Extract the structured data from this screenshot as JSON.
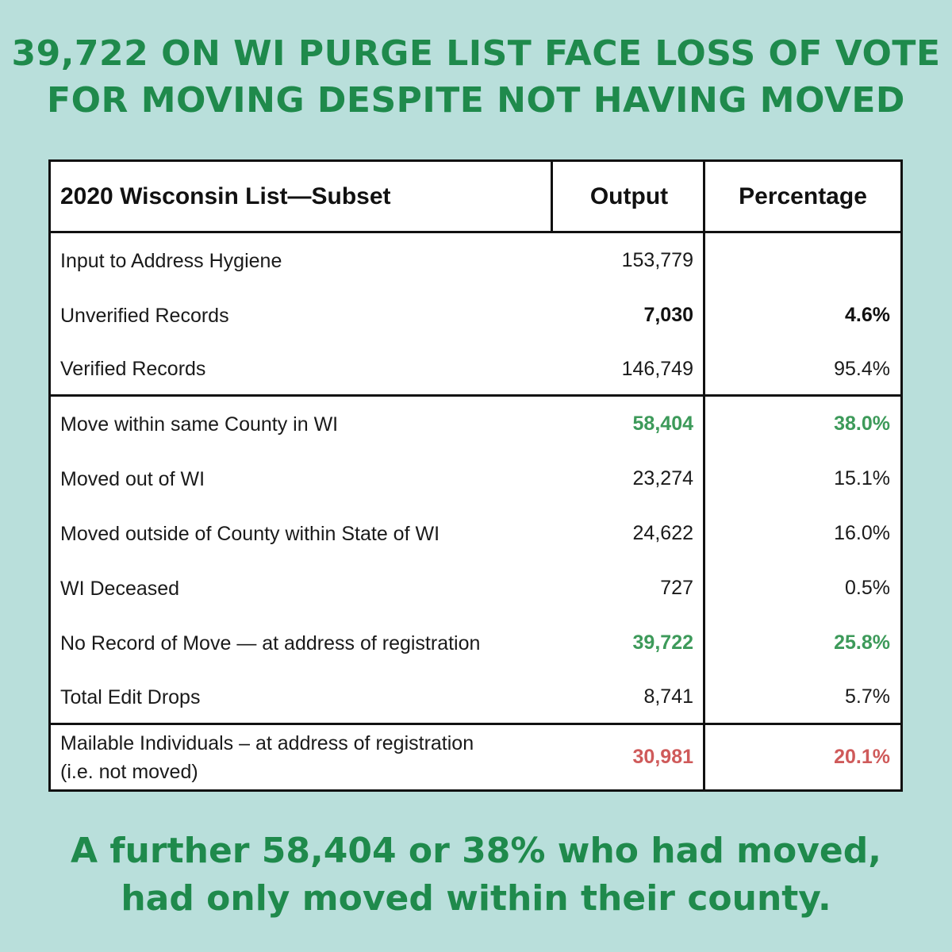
{
  "headline": {
    "line1": "39,722 ON WI PURGE LIST FACE LOSS OF VOTE",
    "line2": "FOR MOVING DESPITE NOT HAVING MOVED"
  },
  "table": {
    "headers": {
      "label": "2020 Wisconsin List—Subset",
      "output": "Output",
      "percentage": "Percentage"
    },
    "rows": [
      {
        "label": "Input to Address Hygiene",
        "output": "153,779",
        "percentage": ""
      },
      {
        "label": "Unverified Records",
        "output": "7,030",
        "percentage": "4.6%"
      },
      {
        "label": "Verified Records",
        "output": "146,749",
        "percentage": "95.4%"
      },
      {
        "label": "Move within same County in WI",
        "output": "58,404",
        "percentage": "38.0%"
      },
      {
        "label": "Moved out of WI",
        "output": "23,274",
        "percentage": "15.1%"
      },
      {
        "label": "Moved outside of County within State of WI",
        "output": "24,622",
        "percentage": "16.0%"
      },
      {
        "label": "WI Deceased",
        "output": "727",
        "percentage": "0.5%"
      },
      {
        "label": "No Record of Move — at address of registration",
        "output": "39,722",
        "percentage": "25.8%"
      },
      {
        "label": "Total Edit Drops",
        "output": "8,741",
        "percentage": "5.7%"
      },
      {
        "label_line1": "Mailable Individuals – at address of registration",
        "label_line2": "(i.e. not moved)",
        "output": "30,981",
        "percentage": "20.1%"
      }
    ],
    "colors": {
      "highlight_green": "#3d9a5a",
      "highlight_red": "#cf5a5a"
    }
  },
  "footer": {
    "line1": "A further 58,404 or 38% who had moved,",
    "line2": "had only moved within their county."
  }
}
